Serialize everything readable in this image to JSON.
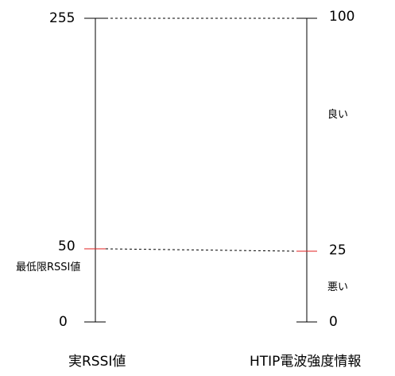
{
  "diagram": {
    "left_scale": {
      "name": "実RSSI値",
      "max_label": "255",
      "threshold_label": "50",
      "threshold_name": "最低限RSSI値",
      "min_label": "0"
    },
    "right_scale": {
      "name": "HTIP電波強度情報",
      "max_label": "100",
      "threshold_label": "25",
      "min_label": "0",
      "upper_zone_label": "良い",
      "lower_zone_label": "悪い"
    },
    "colors": {
      "line": "#000000",
      "threshold_marker": "#e02020",
      "dashed_link": "#000000"
    }
  }
}
